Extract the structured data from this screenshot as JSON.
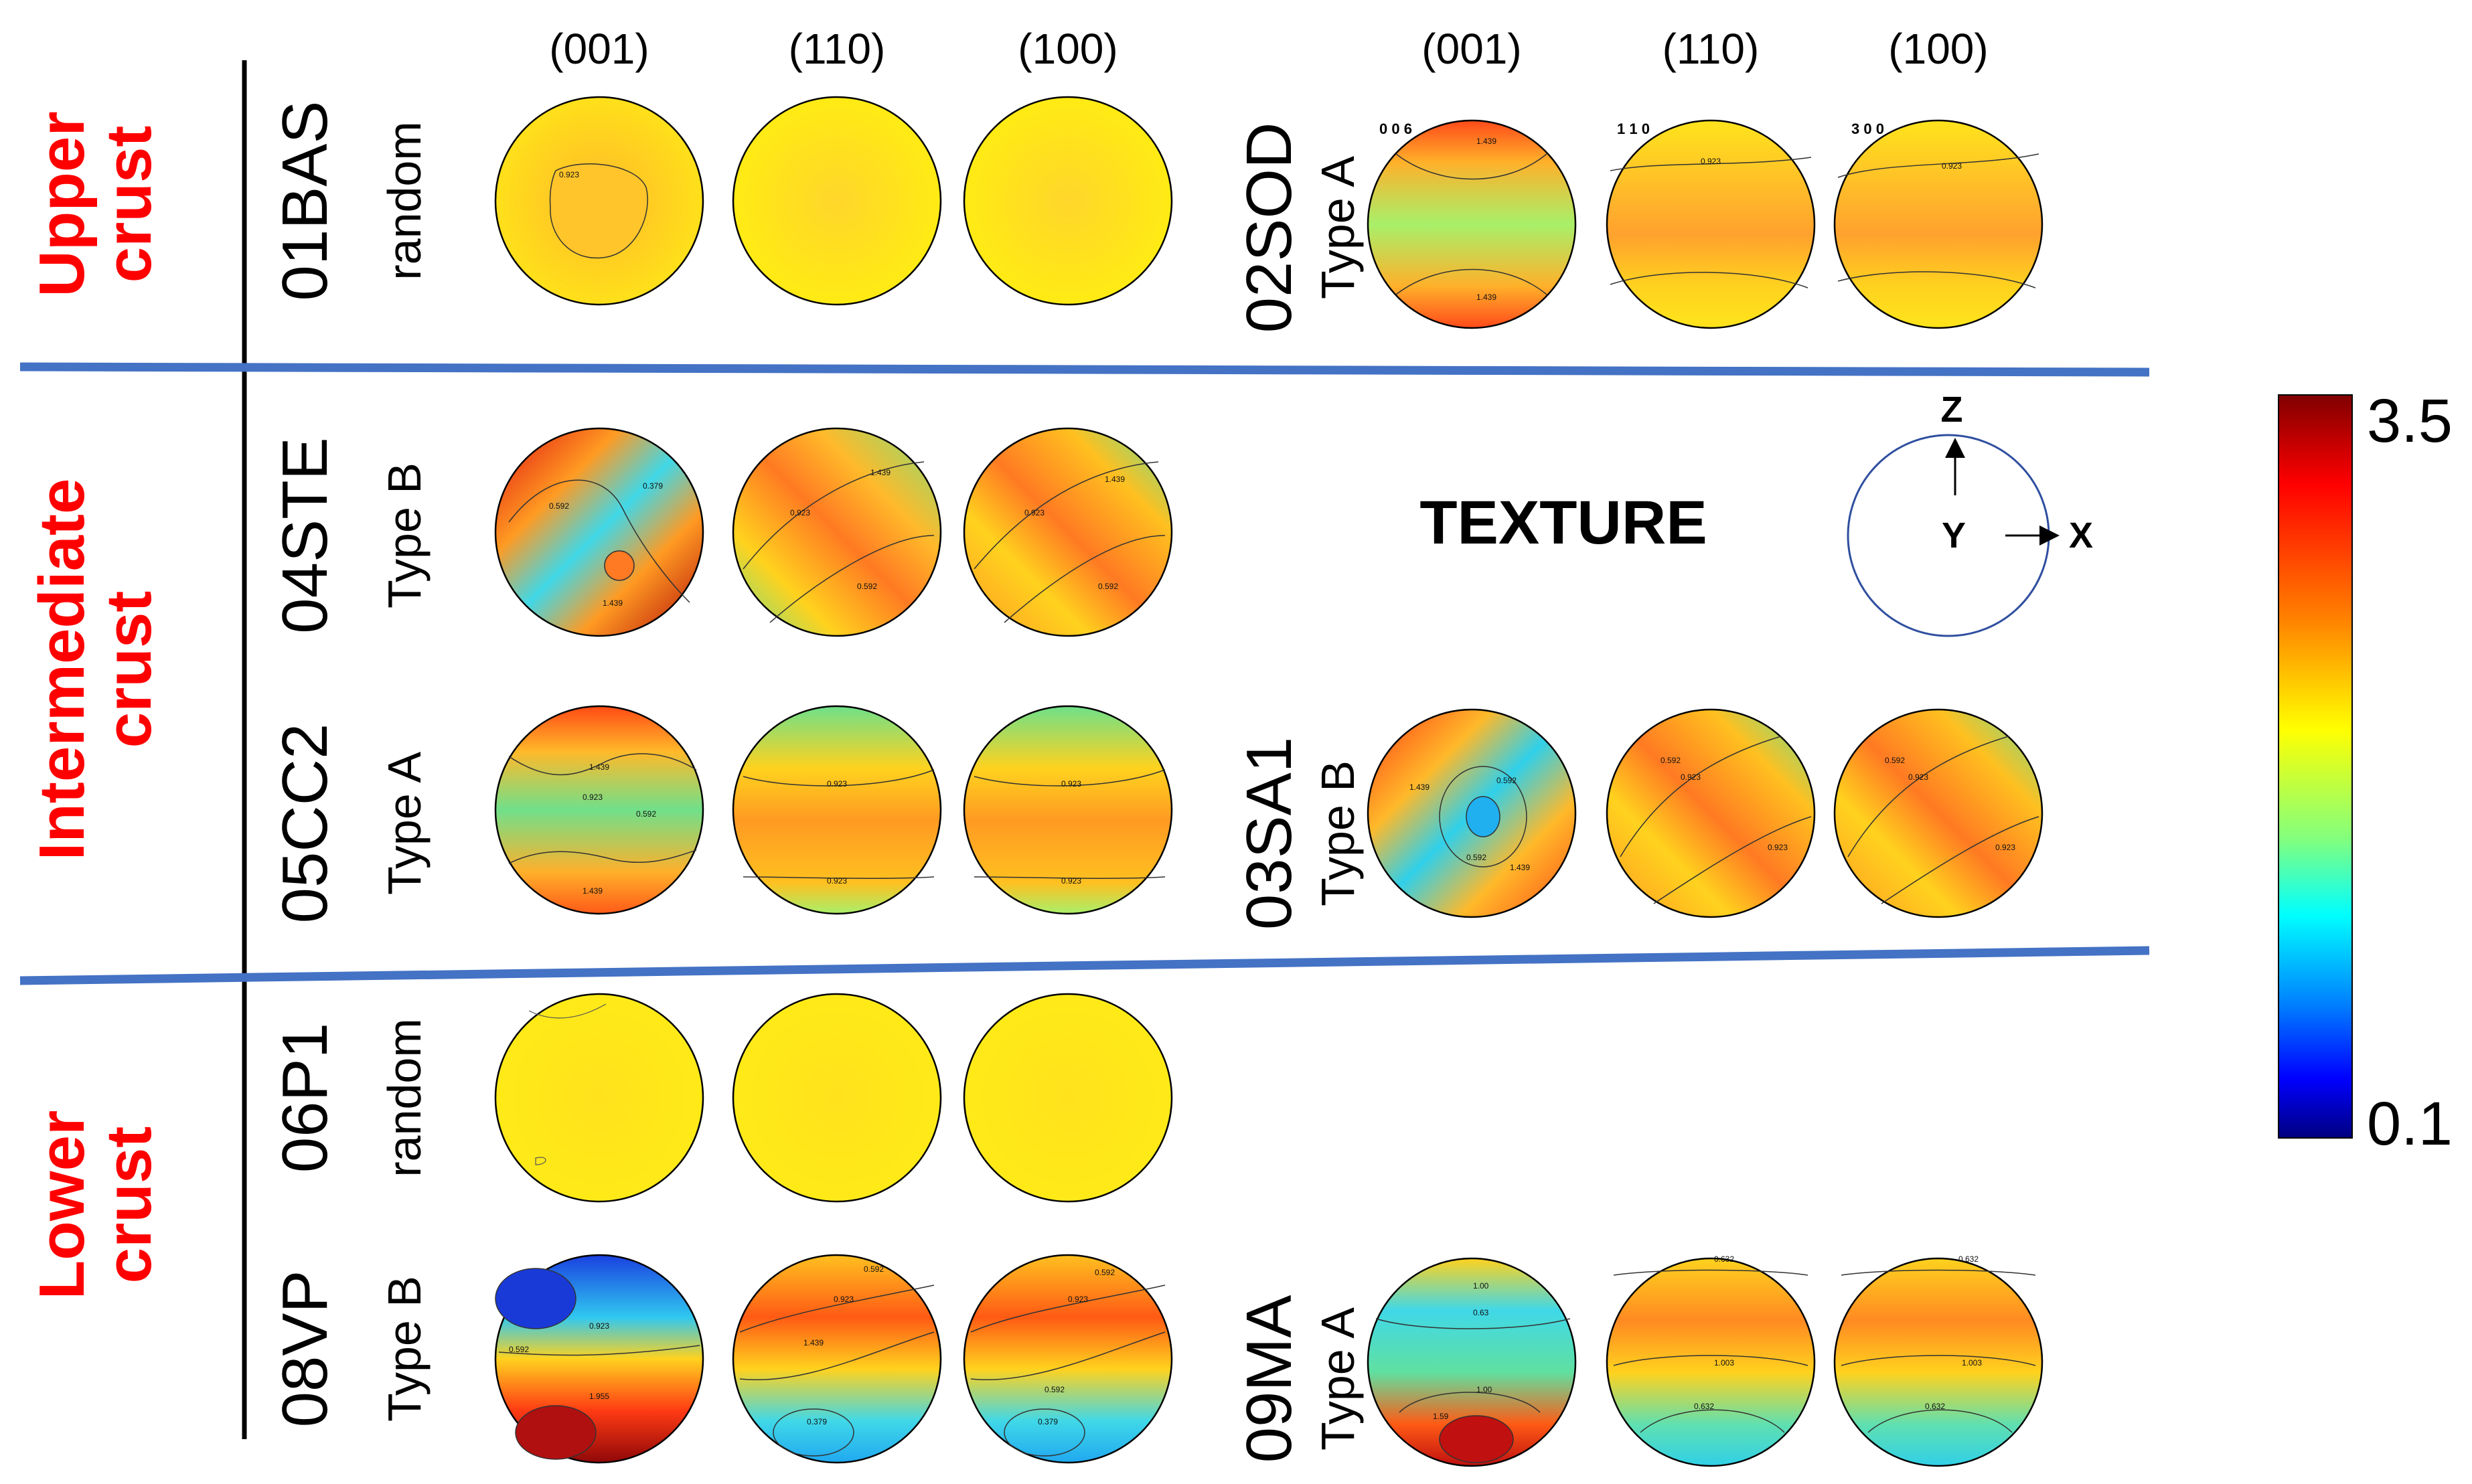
{
  "plane_headers": {
    "left": [
      "(001)",
      "(110)",
      "(100)"
    ],
    "right": [
      "(001)",
      "(110)",
      "(100)"
    ]
  },
  "crust_labels": {
    "upper": [
      "Upper",
      "crust"
    ],
    "intermediate": [
      "Intermediate",
      "crust"
    ],
    "lower": [
      "Lower",
      "crust"
    ]
  },
  "samples": {
    "s01BAS": {
      "id": "01BAS",
      "texture": "random"
    },
    "s02SOD": {
      "id": "02SOD",
      "texture": "Type A"
    },
    "s04STE": {
      "id": "04STE",
      "texture": "Type B"
    },
    "s05CC2": {
      "id": "05CC2",
      "texture": "Type A"
    },
    "s03SA1": {
      "id": "03SA1",
      "texture": "Type B"
    },
    "s06P1": {
      "id": "06P1",
      "texture": "random"
    },
    "s08VP": {
      "id": "08VP",
      "texture": "Type B"
    },
    "s09MA": {
      "id": "09MA",
      "texture": "Type A"
    }
  },
  "miller_labels": {
    "m006": "0 0 6",
    "m110": "1 1 0",
    "m300": "3 0 0"
  },
  "texture_heading": "TEXTURE",
  "axes": {
    "z": "Z",
    "y": "Y",
    "x": "X"
  },
  "colorbar": {
    "max": "3.5",
    "min": "0.1",
    "colors": [
      "#800000",
      "#ff0000",
      "#ff8000",
      "#ffff00",
      "#80ff80",
      "#00ffff",
      "#0080ff",
      "#0000ff",
      "#000080"
    ]
  },
  "contour_values": {
    "v0923": "0.923",
    "v1439": "1.439",
    "v0592": "0.592",
    "v0379": "0.379",
    "v0632": "0.632",
    "v1003": "1.003",
    "v1955": "1.955",
    "v063": "0.63",
    "v100": "1.00",
    "v159": "1.59"
  },
  "colors": {
    "red_label": "#ff0000",
    "divider": "#4472c4",
    "circle_outline": "#000000",
    "axes_circle": "#2f4f9f"
  }
}
